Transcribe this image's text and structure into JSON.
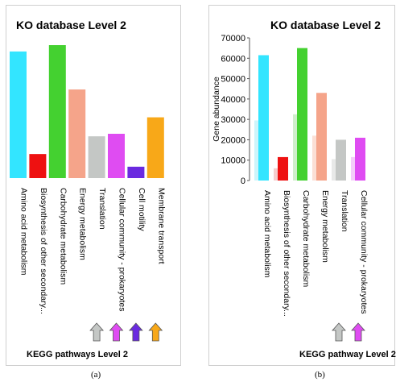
{
  "chart_data": [
    {
      "type": "bar",
      "title": "KO database Level 2",
      "xlabel": "KEGG pathways Level 2",
      "ylabel": "",
      "caption": "(a)",
      "axis_visible": false,
      "categories": [
        "Amino acid metabolism",
        "Biosynthesis of other secondary...",
        "Carbohydrate metabolism",
        "Energy metabolism",
        "Translation",
        "Cellular community - prokaryotes",
        "Cell motility",
        "Membrane transport"
      ],
      "values": [
        100,
        19,
        105,
        70,
        33,
        35,
        9,
        48
      ],
      "colors": [
        "#33e5ff",
        "#ee1111",
        "#44d130",
        "#f5a48a",
        "#c4c7c5",
        "#df4cf2",
        "#6a2ae0",
        "#f8a818"
      ],
      "arrows": [
        {
          "category": "Translation",
          "color": "#c4c7c5"
        },
        {
          "category": "Cellular community - prokaryotes",
          "color": "#df4cf2"
        },
        {
          "category": "Cell motility",
          "color": "#6a2ae0"
        },
        {
          "category": "Membrane transport",
          "color": "#f8a818"
        }
      ]
    },
    {
      "type": "bar",
      "title": "KO database Level 2",
      "xlabel": "KEGG pathway Level 2",
      "ylabel": "Gene abundance",
      "caption": "(b)",
      "ylim": [
        0,
        70000
      ],
      "yticks": [
        0,
        10000,
        20000,
        30000,
        40000,
        50000,
        60000,
        70000
      ],
      "categories": [
        "Amino acid metabolism",
        "Biosynthesis of other secondary...",
        "Carbohydrate metabolism",
        "Energy metabolism",
        "Translation",
        "Cellular community - prokaryotes"
      ],
      "series": [
        {
          "values": [
            29500,
            6000,
            32500,
            22000,
            10500,
            11500
          ],
          "colors": [
            "#cdf5fb",
            "#f6cdcd",
            "#cfeecb",
            "#fbdfd5",
            "#e8e9e8",
            "#f4cdfa"
          ]
        },
        {
          "values": [
            61500,
            11500,
            65000,
            43000,
            20000,
            21000
          ],
          "colors": [
            "#33e5ff",
            "#ee1111",
            "#44d130",
            "#f5a48a",
            "#c4c7c5",
            "#df4cf2"
          ]
        }
      ],
      "arrows": [
        {
          "category": "Translation",
          "color": "#c4c7c5"
        },
        {
          "category": "Cellular community - prokaryotes",
          "color": "#df4cf2"
        }
      ]
    }
  ]
}
